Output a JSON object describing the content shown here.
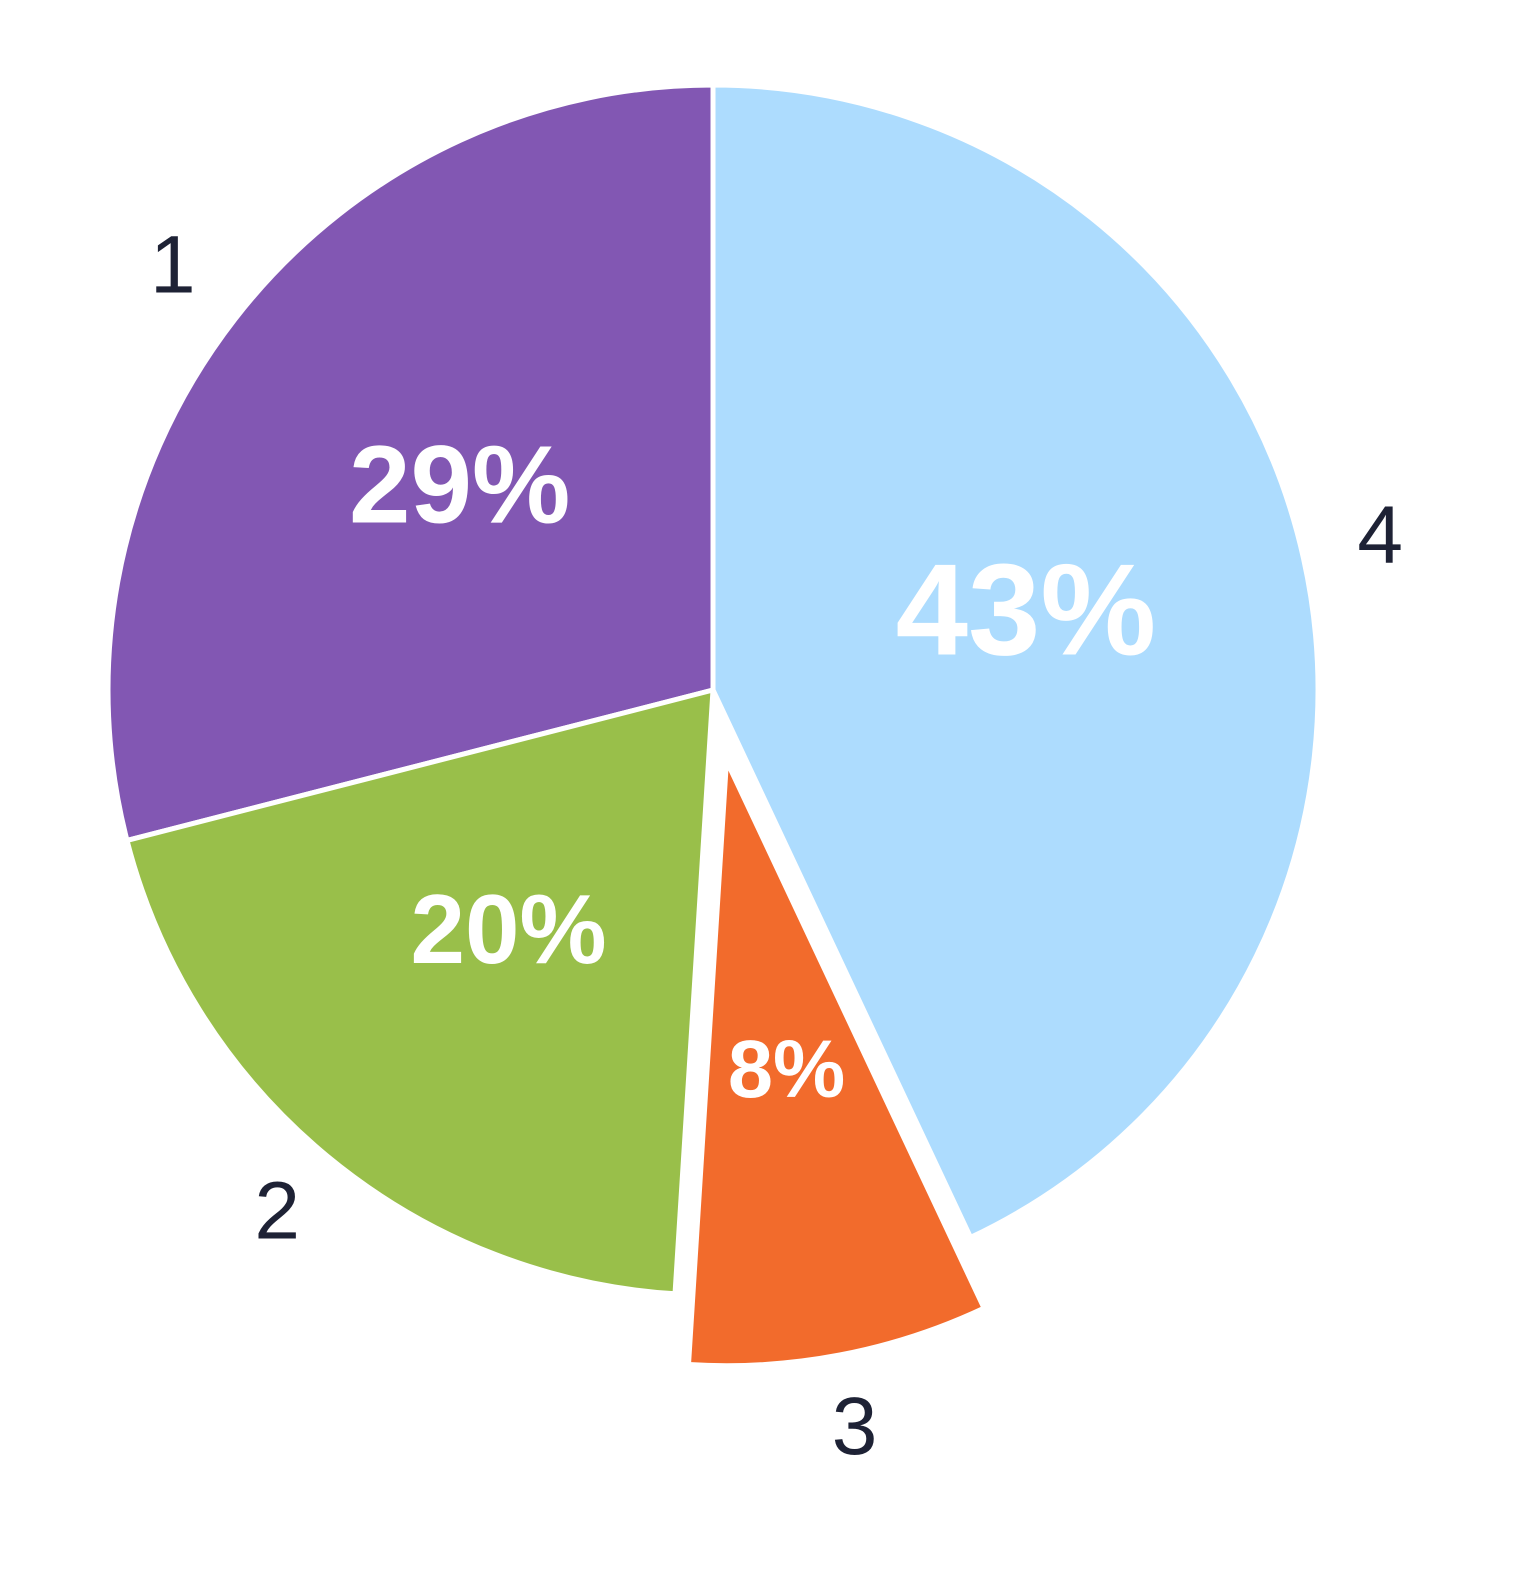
{
  "chart_data": {
    "type": "pie",
    "categories": [
      "1",
      "2",
      "3",
      "4"
    ],
    "values": [
      29,
      20,
      8,
      43
    ],
    "value_labels": [
      "29%",
      "20%",
      "8%",
      "43%"
    ],
    "colors": [
      "#8257b3",
      "#99bf4a",
      "#f26b2c",
      "#addcfe"
    ],
    "explode": [
      0,
      0,
      1,
      0
    ],
    "direction": "counterclockwise",
    "start": "top"
  }
}
